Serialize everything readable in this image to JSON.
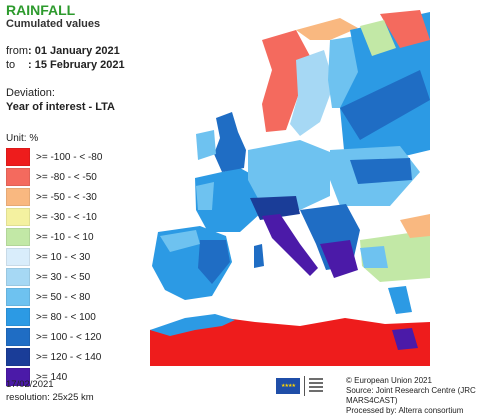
{
  "header": {
    "title": "RAINFALL",
    "subtitle": "Cumulated values",
    "from_label": "from",
    "from_value": ": 01 January 2021",
    "to_label": "to",
    "to_value": ": 15 February 2021",
    "deviation_label": "Deviation:",
    "deviation_value": "Year of interest - LTA"
  },
  "legend": {
    "unit": "Unit: %",
    "items": [
      {
        "label": ">= -100 - < -80",
        "color": "#ee1c1c"
      },
      {
        "label": ">= -80 - < -50",
        "color": "#f46a5e"
      },
      {
        "label": ">= -50 - < -30",
        "color": "#f9b880"
      },
      {
        "label": ">= -30 - < -10",
        "color": "#f4f1a0"
      },
      {
        "label": ">= -10 - < 10",
        "color": "#c2e8a6"
      },
      {
        "label": ">= 10 - < 30",
        "color": "#d9edfb"
      },
      {
        "label": ">= 30 - < 50",
        "color": "#a6d8f4"
      },
      {
        "label": ">= 50 - < 80",
        "color": "#6ec2f0"
      },
      {
        "label": ">= 80 - < 100",
        "color": "#2c9ae4"
      },
      {
        "label": ">= 100 - < 120",
        "color": "#1f6dc4"
      },
      {
        "label": ">= 120 - < 140",
        "color": "#1a3d98"
      },
      {
        "label": ">= 140",
        "color": "#4b1aa8"
      }
    ]
  },
  "map": {
    "ocean_color": "#ffffff",
    "land_no_data": "#e8e8e8"
  },
  "footer": {
    "date": "17/02/2021",
    "resolution": "resolution: 25x25 km",
    "credit_1": "© European Union 2021",
    "credit_2": "Source: Joint Research Centre (JRC MARS4CAST)",
    "credit_3": "Processed by: Alterra consortium"
  }
}
